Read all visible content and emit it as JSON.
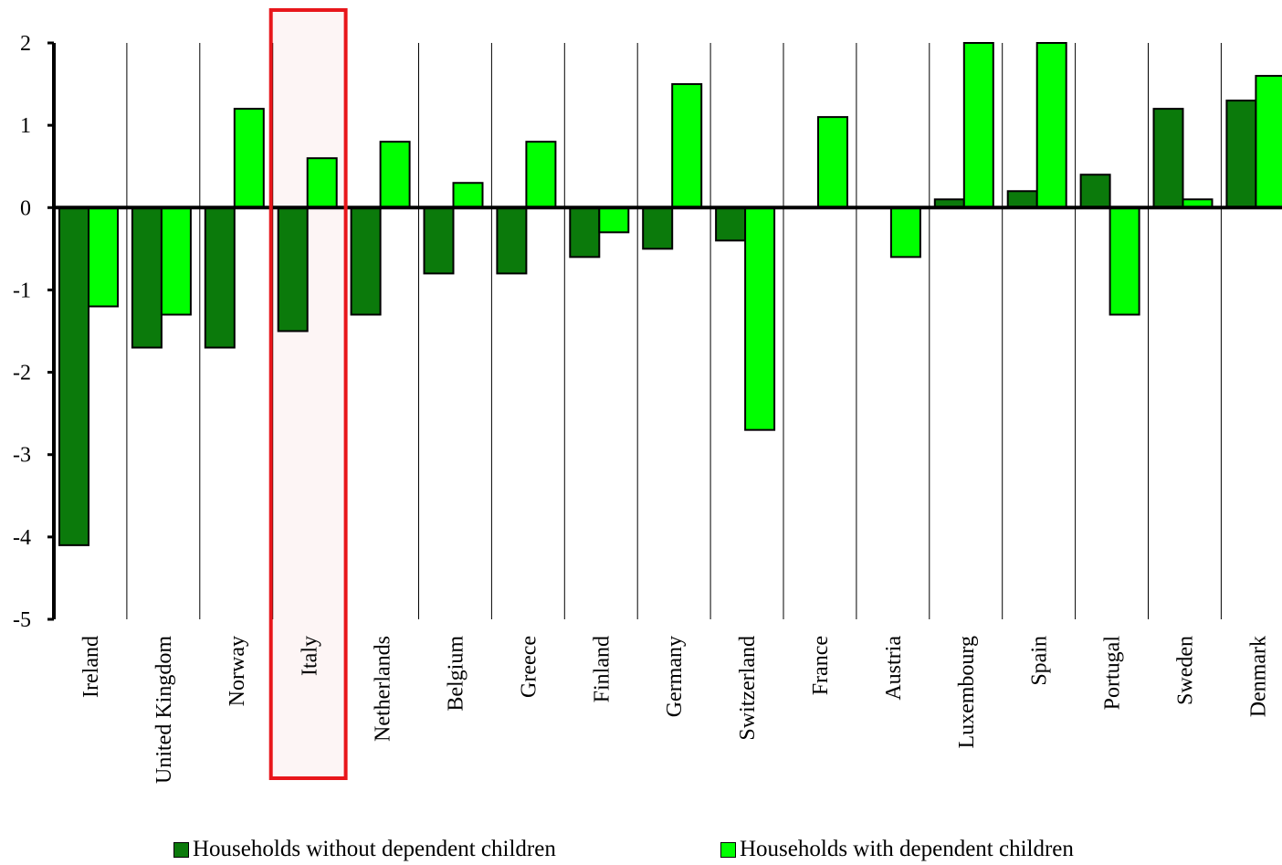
{
  "chart_data": {
    "type": "bar",
    "categories": [
      "Ireland",
      "United Kingdom",
      "Norway",
      "Italy",
      "Netherlands",
      "Belgium",
      "Greece",
      "Finland",
      "Germany",
      "Switzerland",
      "France",
      "Austria",
      "Luxembourg",
      "Spain",
      "Portugal",
      "Sweden",
      "Denmark"
    ],
    "series": [
      {
        "name": "Households without dependent children",
        "color": "#0b7a0b",
        "values": [
          -4.1,
          -1.7,
          -1.7,
          -1.5,
          -1.3,
          -0.8,
          -0.8,
          -0.6,
          -0.5,
          -0.4,
          0,
          0,
          0.1,
          0.2,
          0.4,
          1.2,
          1.3
        ]
      },
      {
        "name": "Households with dependent children",
        "color": "#00ff00",
        "values": [
          -1.2,
          -1.3,
          1.2,
          0.6,
          0.8,
          0.3,
          0.8,
          -0.3,
          1.5,
          -2.7,
          1.1,
          -0.6,
          2.0,
          2.0,
          -1.3,
          0.1,
          1.6
        ]
      }
    ],
    "ylim": [
      -5,
      2
    ],
    "yticks": [
      "2",
      "1",
      "0",
      "-1",
      "-2",
      "-3",
      "-4",
      "-5"
    ],
    "highlight": {
      "category": "Italy",
      "color": "#e8161b"
    },
    "legend_position": "bottom",
    "grid": "vertical separators between categories"
  }
}
